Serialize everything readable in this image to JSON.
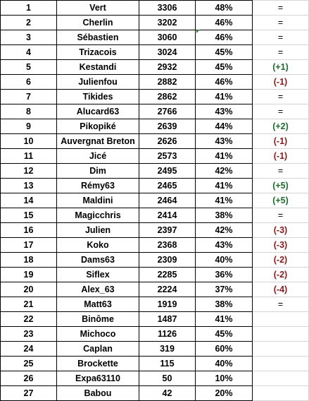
{
  "rows": [
    {
      "rank": "1",
      "name": "Vert",
      "score": "3306",
      "pct": "48%",
      "move": "=",
      "trend": "same"
    },
    {
      "rank": "2",
      "name": "Cherlin",
      "score": "3202",
      "pct": "46%",
      "move": "=",
      "trend": "same"
    },
    {
      "rank": "3",
      "name": "Sébastien",
      "score": "3060",
      "pct": "46%",
      "move": "=",
      "trend": "same"
    },
    {
      "rank": "4",
      "name": "Trizacois",
      "score": "3024",
      "pct": "45%",
      "move": "=",
      "trend": "same"
    },
    {
      "rank": "5",
      "name": "Kestandi",
      "score": "2932",
      "pct": "45%",
      "move": "(+1)",
      "trend": "up"
    },
    {
      "rank": "6",
      "name": "Julienfou",
      "score": "2882",
      "pct": "46%",
      "move": "(-1)",
      "trend": "down"
    },
    {
      "rank": "7",
      "name": "Tikides",
      "score": "2862",
      "pct": "41%",
      "move": "=",
      "trend": "same"
    },
    {
      "rank": "8",
      "name": "Alucard63",
      "score": "2766",
      "pct": "43%",
      "move": "=",
      "trend": "same"
    },
    {
      "rank": "9",
      "name": "Pikopiké",
      "score": "2639",
      "pct": "44%",
      "move": "(+2)",
      "trend": "up"
    },
    {
      "rank": "10",
      "name": "Auvergnat Breton",
      "score": "2626",
      "pct": "43%",
      "move": "(-1)",
      "trend": "down"
    },
    {
      "rank": "11",
      "name": "Jicé",
      "score": "2573",
      "pct": "41%",
      "move": "(-1)",
      "trend": "down"
    },
    {
      "rank": "12",
      "name": "Dim",
      "score": "2495",
      "pct": "42%",
      "move": "=",
      "trend": "same"
    },
    {
      "rank": "13",
      "name": "Rémy63",
      "score": "2465",
      "pct": "41%",
      "move": "(+5)",
      "trend": "up"
    },
    {
      "rank": "14",
      "name": "Maldini",
      "score": "2464",
      "pct": "41%",
      "move": "(+5)",
      "trend": "up"
    },
    {
      "rank": "15",
      "name": "Magicchris",
      "score": "2414",
      "pct": "38%",
      "move": "=",
      "trend": "same"
    },
    {
      "rank": "16",
      "name": "Julien",
      "score": "2397",
      "pct": "42%",
      "move": "(-3)",
      "trend": "down"
    },
    {
      "rank": "17",
      "name": "Koko",
      "score": "2368",
      "pct": "43%",
      "move": "(-3)",
      "trend": "down"
    },
    {
      "rank": "18",
      "name": "Dams63",
      "score": "2309",
      "pct": "40%",
      "move": "(-2)",
      "trend": "down"
    },
    {
      "rank": "19",
      "name": "Siflex",
      "score": "2285",
      "pct": "36%",
      "move": "(-2)",
      "trend": "down"
    },
    {
      "rank": "20",
      "name": "Alex_63",
      "score": "2224",
      "pct": "37%",
      "move": "(-4)",
      "trend": "down"
    },
    {
      "rank": "21",
      "name": "Matt63",
      "score": "1919",
      "pct": "38%",
      "move": "=",
      "trend": "same"
    },
    {
      "rank": "22",
      "name": "Binôme",
      "score": "1487",
      "pct": "41%",
      "move": "",
      "trend": "none"
    },
    {
      "rank": "23",
      "name": "Michoco",
      "score": "1126",
      "pct": "45%",
      "move": "",
      "trend": "none"
    },
    {
      "rank": "24",
      "name": "Caplan",
      "score": "319",
      "pct": "60%",
      "move": "",
      "trend": "none"
    },
    {
      "rank": "25",
      "name": "Brockette",
      "score": "115",
      "pct": "40%",
      "move": "",
      "trend": "none"
    },
    {
      "rank": "26",
      "name": "Expa63110",
      "score": "50",
      "pct": "10%",
      "move": "",
      "trend": "none"
    },
    {
      "rank": "27",
      "name": "Babou",
      "score": "42",
      "pct": "20%",
      "move": "",
      "trend": "none"
    }
  ],
  "colors": {
    "up": "#1e6b2e",
    "down": "#8b1a1a",
    "same": "#000000",
    "grid_border": "#000000",
    "light_border": "#d4d4d4",
    "cell_marker": "#2e7d32"
  }
}
